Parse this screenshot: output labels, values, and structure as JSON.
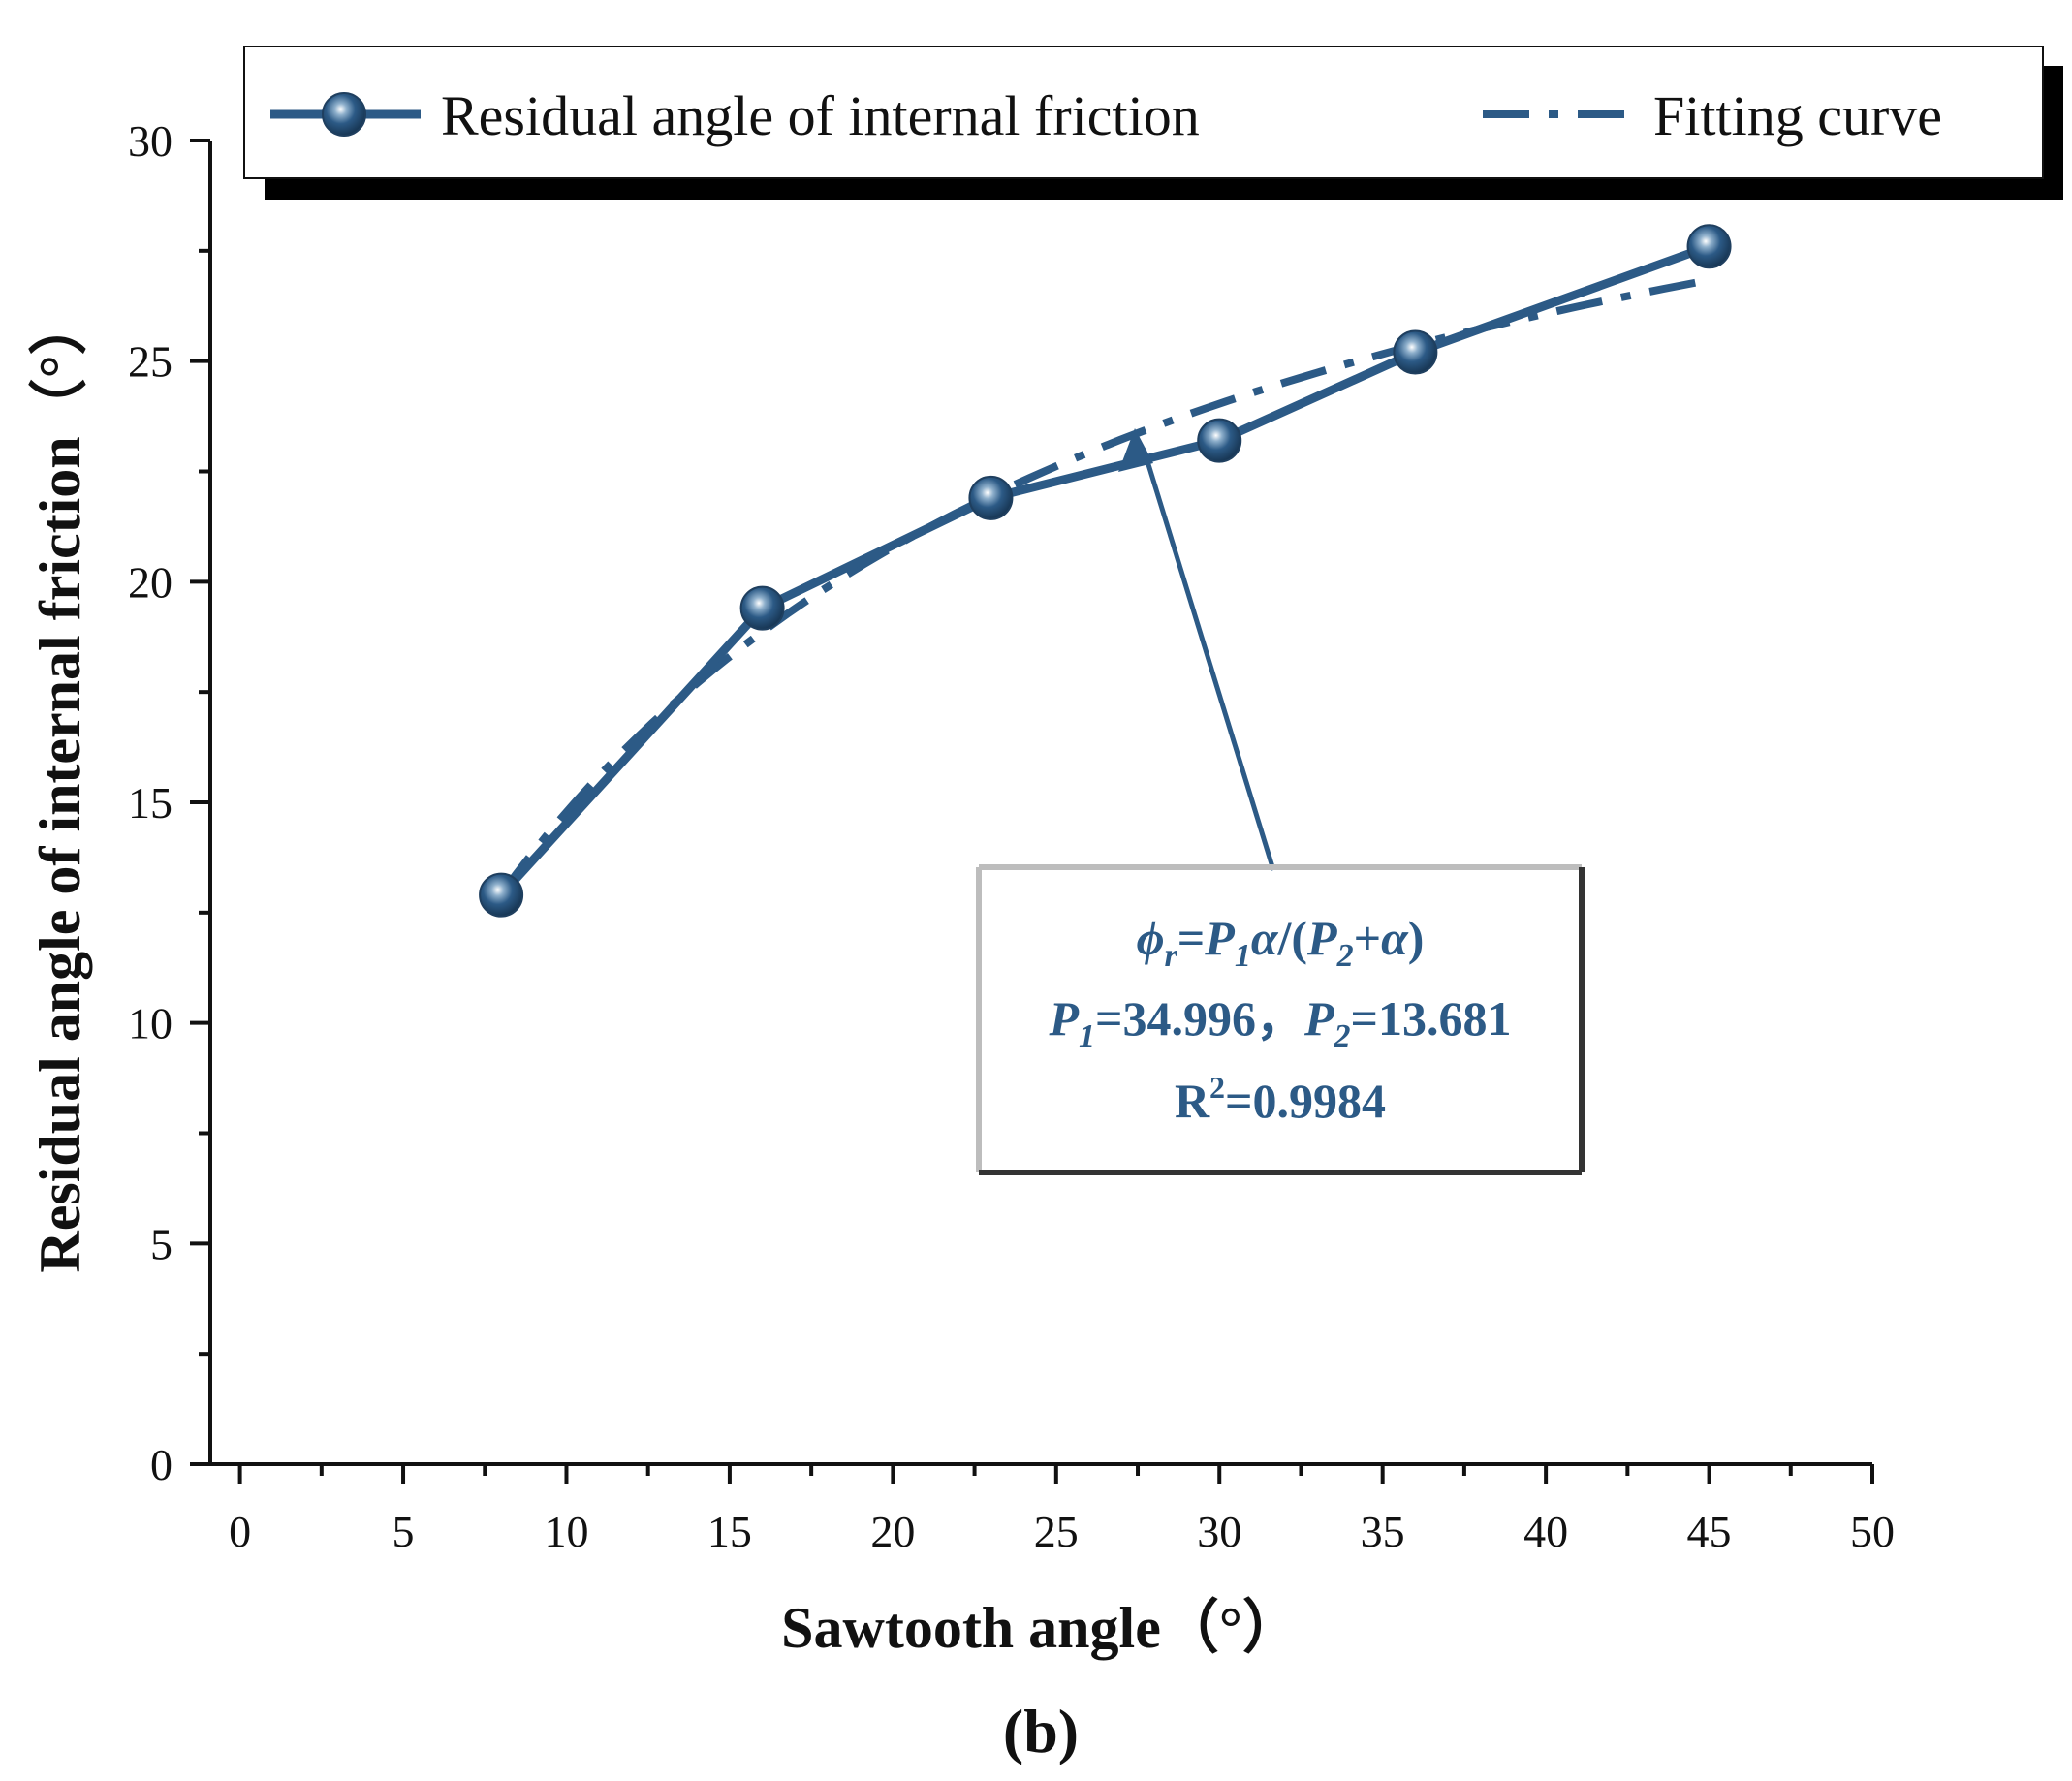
{
  "chart_data": {
    "type": "line",
    "panel_label": "(b)",
    "xlabel": "Sawtooth angle（°）",
    "ylabel": "Residual angle of internal friction（°）",
    "xlim": [
      -1,
      50
    ],
    "ylim": [
      0,
      30
    ],
    "xticks": [
      0,
      5,
      10,
      15,
      20,
      25,
      30,
      35,
      40,
      45,
      50
    ],
    "yticks": [
      0,
      5,
      10,
      15,
      20,
      25,
      30
    ],
    "grid": false,
    "legend_position": "top",
    "series": [
      {
        "name": "Residual angle of internal friction",
        "style": "solid-line-with-markers",
        "x": [
          8,
          16,
          23,
          30,
          36,
          45
        ],
        "y": [
          12.9,
          19.4,
          21.9,
          23.2,
          25.2,
          27.6
        ]
      },
      {
        "name": "Fitting curve",
        "style": "dash-dot",
        "model": "phi_r = P1*alpha/(P2+alpha)",
        "P1": 34.996,
        "P2": 13.681,
        "x_range": [
          8,
          45
        ]
      }
    ],
    "annotation": {
      "equation": {
        "phi": "ϕ",
        "phi_sub": "r",
        "eq1": "=",
        "p1": "P",
        "p1_sub": "1",
        "alpha1": "α",
        "mid": "/(",
        "p2": "P",
        "p2_sub": "2",
        "plus": "+",
        "alpha2": "α",
        "close": ")"
      },
      "params": {
        "p1": "P",
        "p1_sub": "1",
        "p1_val": "=34.996，",
        "p2": "P",
        "p2_sub": "2",
        "p2_val": "=13.681"
      },
      "r2": {
        "r": "R",
        "sup": "2",
        "val": "=0.9984"
      },
      "arrow_target": {
        "x": 27.7,
        "y": 23.3
      }
    },
    "colors": {
      "series": "#2c5a86",
      "text": "#111111",
      "box_border_light": "#bdbdbd",
      "box_border_dark": "#333333"
    }
  }
}
